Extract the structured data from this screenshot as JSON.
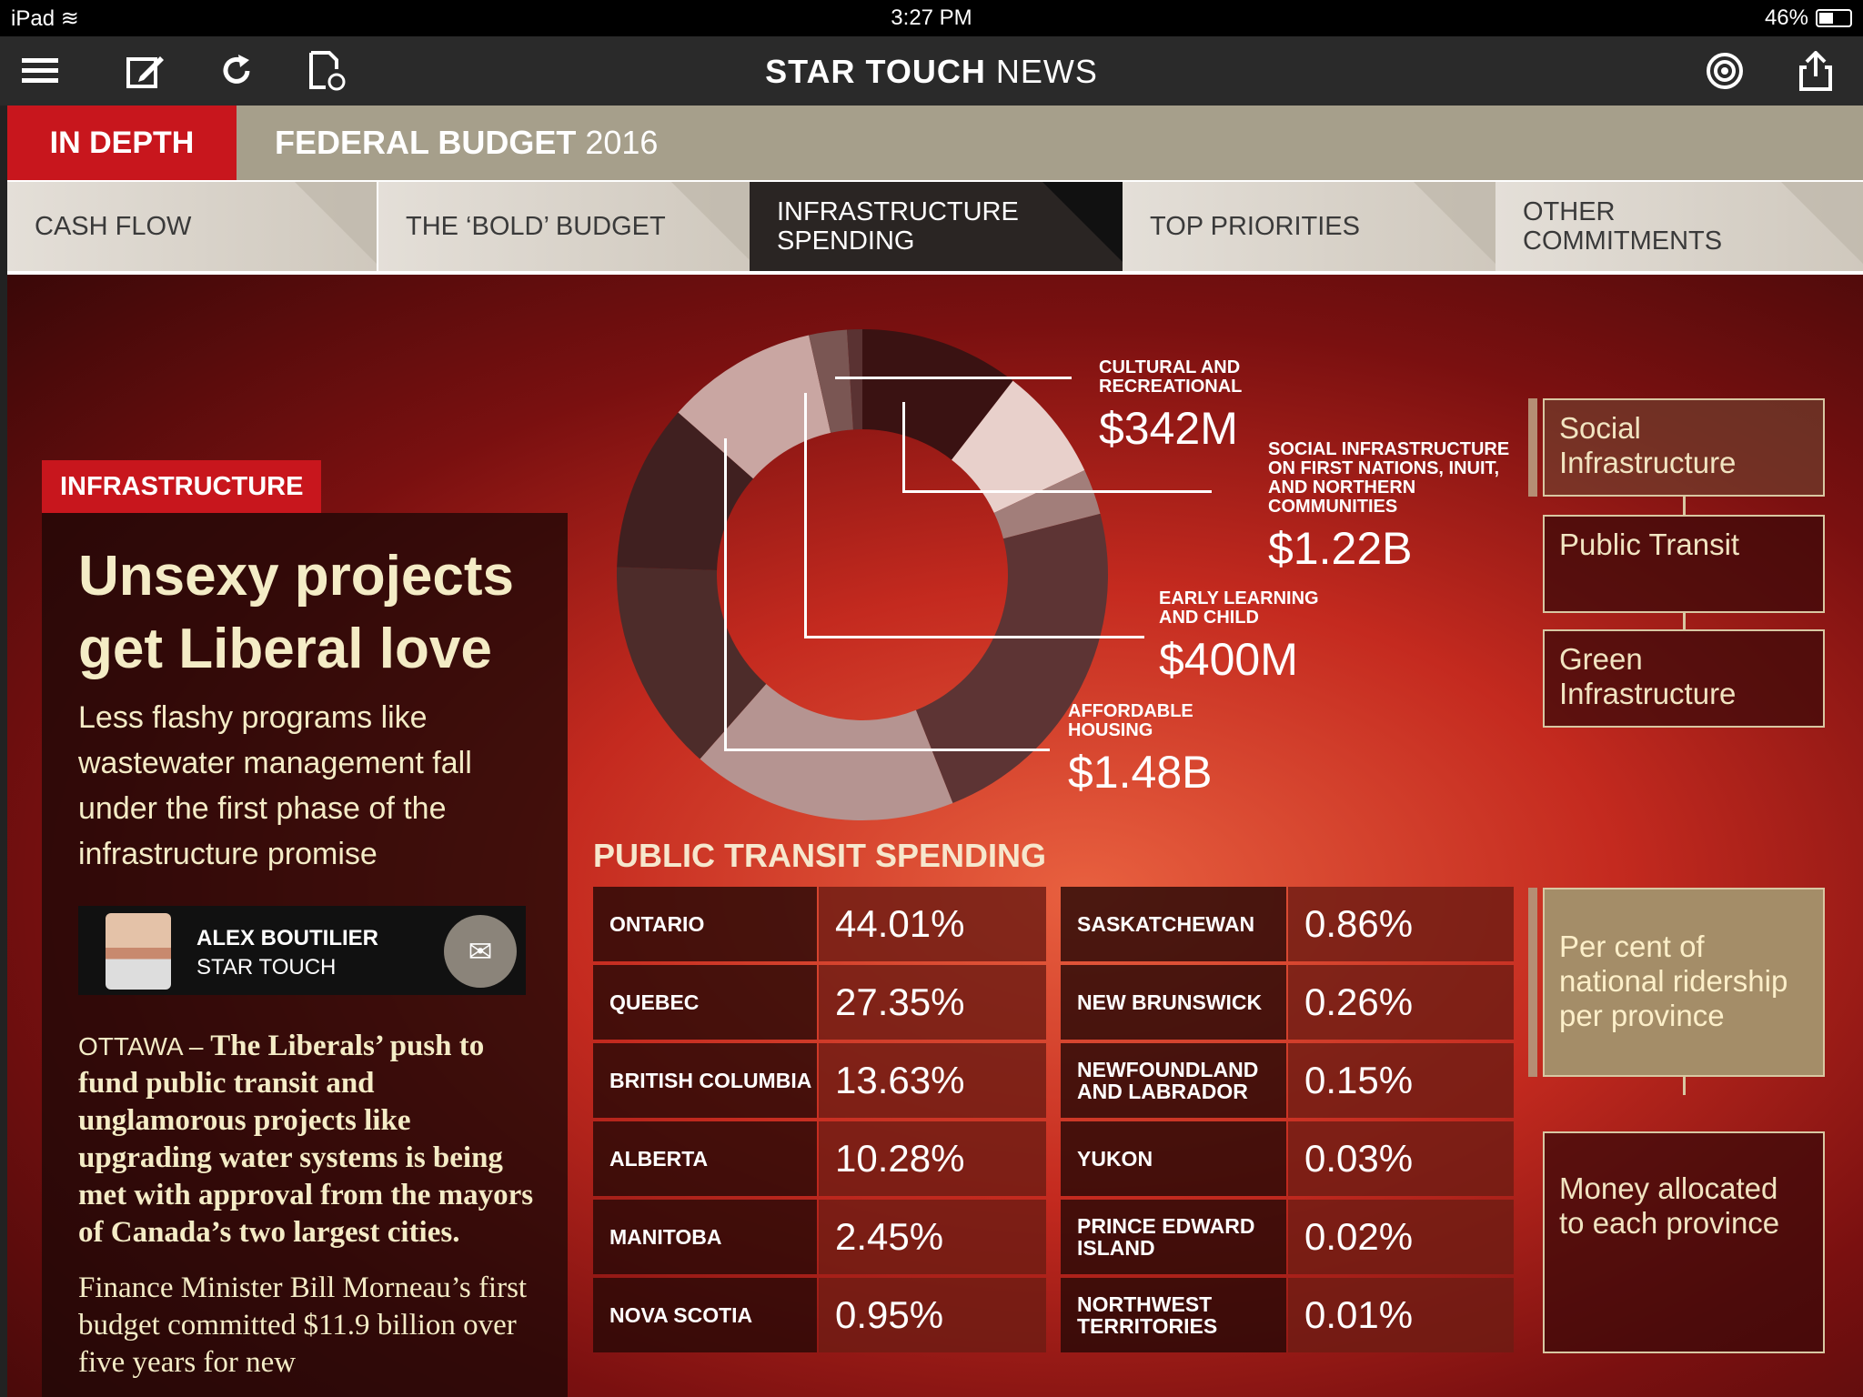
{
  "status": {
    "device": "iPad",
    "time": "3:27 PM",
    "battery": "46%",
    "battery_level": 0.46
  },
  "app": {
    "title_bold": "STAR TOUCH",
    "title_rest": " NEWS"
  },
  "section": {
    "badge": "IN DEPTH",
    "title_bold": "FEDERAL BUDGET",
    "title_rest": " 2016"
  },
  "tabs": [
    {
      "label": "CASH FLOW"
    },
    {
      "label": "THE ‘BOLD’ BUDGET"
    },
    {
      "label": "INFRASTRUCTURE SPENDING"
    },
    {
      "label": "TOP PRIORITIES"
    },
    {
      "label": "OTHER COMMITMENTS"
    }
  ],
  "story": {
    "tag": "INFRASTRUCTURE",
    "headline": "Unsexy projects get Liberal love",
    "dek": "Less flashy programs like wastewater management fall under the first phase of the infrastructure promise",
    "author": "ALEX BOUTILIER",
    "org": "STAR TOUCH",
    "dateline": "OTTAWA – ",
    "lead": "The Liberals’ push to fund public transit and unglamorous projects like upgrading water systems is being met with approval from the mayors of Canada’s two largest cities.",
    "para2": "Finance Minister Bill Morneau’s first budget committed $11.9 billion over five years for new"
  },
  "callouts": [
    {
      "label": "CULTURAL AND RECREATIONAL",
      "value": "$342M"
    },
    {
      "label": "SOCIAL INFRASTRUCTURE ON FIRST NATIONS, INUIT, AND NORTHERN COMMUNITIES",
      "value": "$1.22B"
    },
    {
      "label": "EARLY LEARNING AND CHILD",
      "value": "$400M"
    },
    {
      "label": "AFFORDABLE HOUSING",
      "value": "$1.48B"
    }
  ],
  "flow": {
    "social": "Social Infrastructure",
    "transit": "Public Transit",
    "green": "Green Infrastructure",
    "ridership": "Per cent of national ridership per province",
    "money": "Money allocated to each province"
  },
  "transit": {
    "title": "PUBLIC TRANSIT SPENDING",
    "rows": [
      {
        "p1": "ONTARIO",
        "v1": "44.01%",
        "p2": "SASKATCHEWAN",
        "v2": "0.86%"
      },
      {
        "p1": "QUEBEC",
        "v1": "27.35%",
        "p2": "NEW BRUNSWICK",
        "v2": "0.26%"
      },
      {
        "p1": "BRITISH COLUMBIA",
        "v1": "13.63%",
        "p2": "NEWFOUNDLAND AND LABRADOR",
        "v2": "0.15%"
      },
      {
        "p1": "ALBERTA",
        "v1": "10.28%",
        "p2": "YUKON",
        "v2": "0.03%"
      },
      {
        "p1": "MANITOBA",
        "v1": "2.45%",
        "p2": "PRINCE EDWARD ISLAND",
        "v2": "0.02%"
      },
      {
        "p1": "NOVA SCOTIA",
        "v1": "0.95%",
        "p2": "NORTHWEST TERRITORIES",
        "v2": "0.01%"
      }
    ]
  },
  "donut_segments": [
    {
      "color": "#3a1212",
      "frac": 0.105
    },
    {
      "color": "#e8d0cb",
      "frac": 0.075
    },
    {
      "color": "#a27e7a",
      "frac": 0.03
    },
    {
      "color": "#5d3434",
      "frac": 0.23
    },
    {
      "color": "#b59491",
      "frac": 0.175
    },
    {
      "color": "#4d2c2a",
      "frac": 0.14
    },
    {
      "color": "#402020",
      "frac": 0.11
    },
    {
      "color": "#c9a6a2",
      "frac": 0.1
    },
    {
      "color": "#7a5653",
      "frac": 0.025
    },
    {
      "color": "#5a3232",
      "frac": 0.01
    }
  ],
  "icons": {
    "menu": "menu-icon",
    "edit": "edit-icon",
    "refresh": "refresh-icon",
    "page": "page-refresh-icon",
    "podcast": "podcast-icon",
    "share": "share-icon",
    "mail": "mail-icon"
  }
}
